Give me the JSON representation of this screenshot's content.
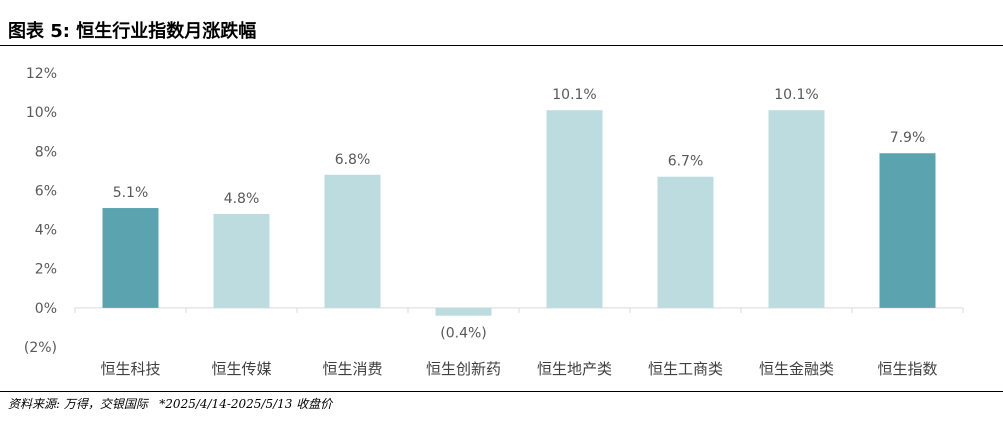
{
  "title": "图表 5: 恒生行业指数月涨跌幅",
  "source": "资料来源: 万得，交银国际   *2025/4/14-2025/5/13 收盘价",
  "colors": {
    "highlight": "#5ba3ae",
    "normal": "#bcdce0",
    "axis": "#d9d9d9"
  },
  "chart_data": {
    "type": "bar",
    "categories": [
      "恒生科技",
      "恒生传媒",
      "恒生消费",
      "恒生创新药",
      "恒生地产类",
      "恒生工商类",
      "恒生金融类",
      "恒生指数"
    ],
    "values": [
      5.1,
      4.8,
      6.8,
      -0.4,
      10.1,
      6.7,
      10.1,
      7.9
    ],
    "data_labels": [
      "5.1%",
      "4.8%",
      "6.8%",
      "(0.4%)",
      "10.1%",
      "6.7%",
      "10.1%",
      "7.9%"
    ],
    "highlighted": [
      true,
      false,
      false,
      false,
      false,
      false,
      false,
      true
    ],
    "ylim": [
      -2,
      12
    ],
    "yticks": [
      -2,
      0,
      2,
      4,
      6,
      8,
      10,
      12
    ],
    "ytick_labels": [
      "(2%)",
      "0%",
      "2%",
      "4%",
      "6%",
      "8%",
      "10%",
      "12%"
    ],
    "xlabel": "",
    "ylabel": "",
    "grid": false,
    "legend": "none"
  }
}
